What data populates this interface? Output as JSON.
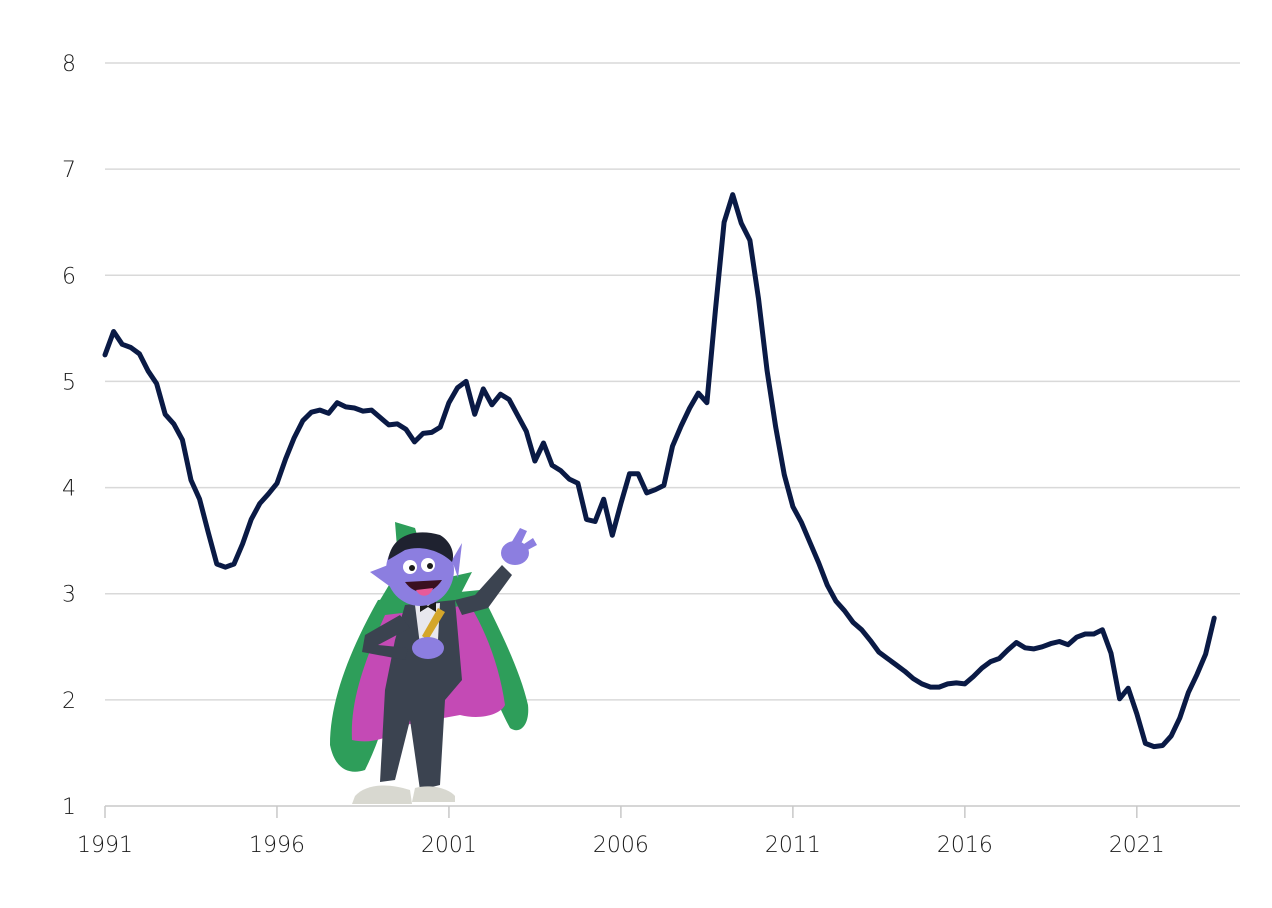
{
  "chart_data": {
    "type": "line",
    "title": "",
    "xlabel": "",
    "ylabel": "",
    "xlim": [
      1991,
      2024
    ],
    "ylim": [
      1,
      8
    ],
    "y_ticks": [
      1,
      2,
      3,
      4,
      5,
      6,
      7,
      8
    ],
    "x_ticks": [
      1991,
      1996,
      2001,
      2006,
      2011,
      2016,
      2021
    ],
    "x_tick_labels": [
      "1991",
      "1996",
      "2001",
      "2006",
      "2011",
      "2016",
      "2021"
    ],
    "y_tick_labels": [
      "1",
      "2",
      "3",
      "4",
      "5",
      "6",
      "7",
      "8"
    ],
    "grid": true,
    "legend": "none",
    "line_color": "#0a1a45",
    "series": [
      {
        "x": [
          1991.0,
          1991.25,
          1991.5,
          1991.75,
          1992.0,
          1992.25,
          1992.5,
          1992.75,
          1993.0,
          1993.25,
          1993.5,
          1993.75,
          1994.0,
          1994.25,
          1994.5,
          1994.75,
          1995.0,
          1995.25,
          1995.5,
          1995.75,
          1996.0,
          1996.25,
          1996.5,
          1996.75,
          1997.0,
          1997.25,
          1997.5,
          1997.75,
          1998.0,
          1998.25,
          1998.5,
          1998.75,
          1999.0,
          1999.25,
          1999.5,
          1999.75,
          2000.0,
          2000.25,
          2000.5,
          2000.75,
          2001.0,
          2001.25,
          2001.5,
          2001.75,
          2002.0,
          2002.25,
          2002.5,
          2002.75,
          2003.0,
          2003.25,
          2003.5,
          2003.75,
          2004.0,
          2004.25,
          2004.5,
          2004.75,
          2005.0,
          2005.25,
          2005.5,
          2005.75,
          2006.0,
          2006.25,
          2006.5,
          2006.75,
          2007.0,
          2007.25,
          2007.5,
          2007.75,
          2008.0,
          2008.25,
          2008.5,
          2008.75,
          2009.0,
          2009.25,
          2009.5,
          2009.75,
          2010.0,
          2010.25,
          2010.5,
          2010.75,
          2011.0,
          2011.25,
          2011.5,
          2011.75,
          2012.0,
          2012.25,
          2012.5,
          2012.75,
          2013.0,
          2013.25,
          2013.5,
          2013.75,
          2014.0,
          2014.25,
          2014.5,
          2014.75,
          2015.0,
          2015.25,
          2015.5,
          2015.75,
          2016.0,
          2016.25,
          2016.5,
          2016.75,
          2017.0,
          2017.25,
          2017.5,
          2017.75,
          2018.0,
          2018.25,
          2018.5,
          2018.75,
          2019.0,
          2019.25,
          2019.5,
          2019.75,
          2020.0,
          2020.25,
          2020.5,
          2020.75,
          2021.0,
          2021.25,
          2021.5,
          2021.75,
          2022.0,
          2022.25,
          2022.5,
          2022.75,
          2023.0,
          2023.25
        ],
        "values": [
          5.25,
          5.47,
          5.35,
          5.32,
          5.26,
          5.1,
          4.98,
          4.69,
          4.6,
          4.45,
          4.07,
          3.89,
          3.58,
          3.28,
          3.25,
          3.28,
          3.47,
          3.7,
          3.85,
          3.94,
          4.04,
          4.27,
          4.47,
          4.63,
          4.71,
          4.73,
          4.7,
          4.8,
          4.76,
          4.75,
          4.72,
          4.73,
          4.66,
          4.59,
          4.6,
          4.55,
          4.43,
          4.51,
          4.52,
          4.57,
          4.8,
          4.94,
          5.0,
          4.69,
          4.93,
          4.78,
          4.88,
          4.83,
          4.68,
          4.53,
          4.25,
          4.42,
          4.21,
          4.16,
          4.08,
          4.04,
          3.7,
          3.68,
          3.89,
          3.55,
          3.85,
          4.13,
          4.13,
          3.95,
          3.98,
          4.02,
          4.39,
          4.58,
          4.75,
          4.89,
          4.8,
          5.68,
          6.5,
          6.76,
          6.49,
          6.33,
          5.78,
          5.1,
          4.57,
          4.12,
          3.82,
          3.67,
          3.48,
          3.29,
          3.08,
          2.93,
          2.84,
          2.73,
          2.66,
          2.56,
          2.45,
          2.39,
          2.33,
          2.27,
          2.2,
          2.15,
          2.12,
          2.12,
          2.15,
          2.16,
          2.15,
          2.22,
          2.3,
          2.36,
          2.39,
          2.47,
          2.54,
          2.49,
          2.48,
          2.5,
          2.53,
          2.55,
          2.52,
          2.59,
          2.62,
          2.62,
          2.66,
          2.44,
          2.01,
          2.11,
          1.87,
          1.59,
          1.56,
          1.57,
          1.66,
          1.83,
          2.07,
          2.24,
          2.43,
          2.77
        ]
      }
    ]
  },
  "illustration": {
    "name": "count-von-count-character"
  }
}
